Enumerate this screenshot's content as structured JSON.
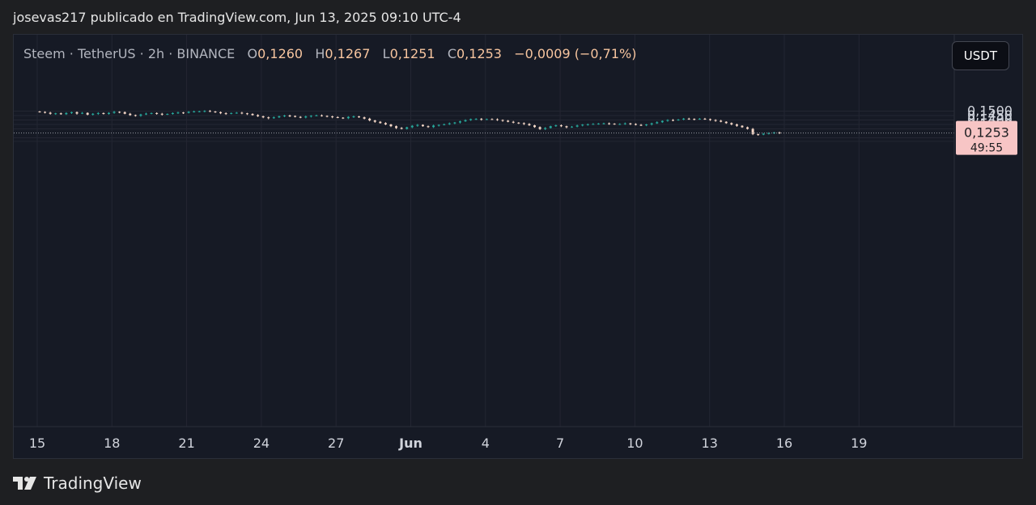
{
  "header": {
    "published": "josevas217 publicado en TradingView.com, Jun 13, 2025 09:10 UTC-4"
  },
  "legend": {
    "symbol": "Steem · TetherUS · 2h · BINANCE",
    "open_label": "O",
    "open": "0,1260",
    "high_label": "H",
    "high": "0,1267",
    "low_label": "L",
    "low": "0,1251",
    "close_label": "C",
    "close": "0,1253",
    "change": "−0,0009 (−0,71%)"
  },
  "currency_button": "USDT",
  "price_tag": {
    "price": "0,1253",
    "countdown": "49:55"
  },
  "footer": {
    "brand": "TradingView"
  },
  "colors": {
    "up": "#26a69a",
    "down": "#f4d7c7",
    "background": "#161a25",
    "tag": "#f7c5c5"
  },
  "chart_data": {
    "type": "line",
    "description_of_marks": "candlestick",
    "xlabel": "",
    "ylabel": "",
    "y_ticks": [
      "0,1500",
      "0,1450",
      "0,1400",
      "0,1350",
      "0,1300",
      "0,1200",
      "0,1160"
    ],
    "x_ticks": [
      "15",
      "18",
      "21",
      "24",
      "27",
      "Jun",
      "4",
      "7",
      "10",
      "13",
      "16",
      "19"
    ],
    "last_price": 0.1253,
    "grid": true,
    "series": [
      {
        "values": [
          0.149,
          0.1482,
          0.147,
          0.1475,
          0.1465,
          0.1478,
          0.1488,
          0.1472,
          0.148,
          0.146,
          0.147,
          0.1478,
          0.1468,
          0.148,
          0.1492,
          0.1488,
          0.147,
          0.1455,
          0.1448,
          0.1462,
          0.1472,
          0.1478,
          0.147,
          0.1462,
          0.1468,
          0.1478,
          0.1484,
          0.148,
          0.1492,
          0.1496,
          0.1498,
          0.1502,
          0.1495,
          0.1488,
          0.1476,
          0.147,
          0.1478,
          0.1482,
          0.1475,
          0.1468,
          0.1455,
          0.1442,
          0.143,
          0.142,
          0.143,
          0.1442,
          0.145,
          0.1445,
          0.1435,
          0.1428,
          0.144,
          0.1448,
          0.1452,
          0.1446,
          0.144,
          0.1432,
          0.1426,
          0.142,
          0.1435,
          0.144,
          0.143,
          0.1415,
          0.1395,
          0.138,
          0.1365,
          0.135,
          0.133,
          0.131,
          0.13,
          0.1318,
          0.1335,
          0.1345,
          0.133,
          0.132,
          0.1338,
          0.1345,
          0.1352,
          0.1362,
          0.1372,
          0.1385,
          0.1398,
          0.141,
          0.1412,
          0.1405,
          0.141,
          0.1408,
          0.14,
          0.1392,
          0.138,
          0.137,
          0.1365,
          0.1355,
          0.134,
          0.132,
          0.1298,
          0.131,
          0.133,
          0.134,
          0.133,
          0.1318,
          0.1325,
          0.1338,
          0.1348,
          0.1352,
          0.1355,
          0.136,
          0.1362,
          0.1358,
          0.1352,
          0.1355,
          0.1362,
          0.1355,
          0.1345,
          0.134,
          0.135,
          0.1362,
          0.1375,
          0.139,
          0.14,
          0.1398,
          0.1405,
          0.1415,
          0.1412,
          0.1408,
          0.1414,
          0.141,
          0.14,
          0.1392,
          0.138,
          0.1365,
          0.135,
          0.1335,
          0.1318,
          0.13,
          0.124,
          0.1235,
          0.1245,
          0.1252,
          0.126,
          0.1253
        ]
      }
    ]
  }
}
